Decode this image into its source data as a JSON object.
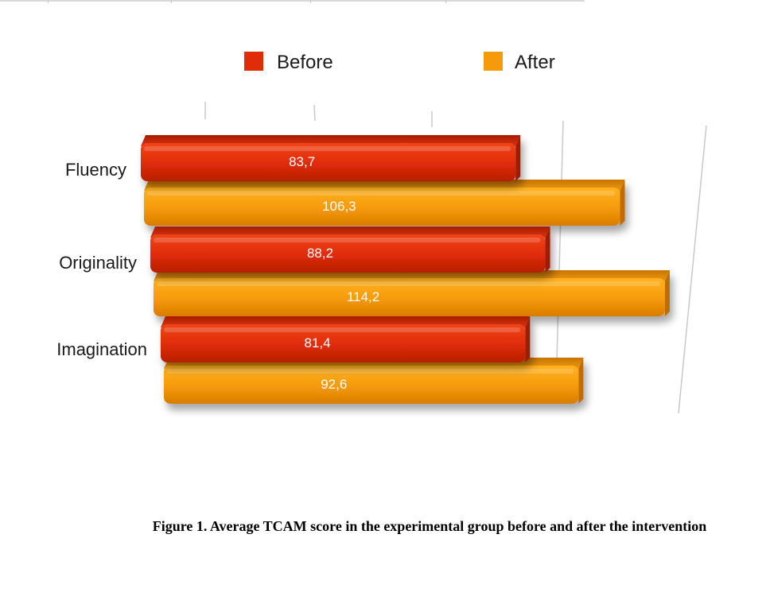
{
  "chart_data": {
    "type": "bar",
    "orientation": "horizontal",
    "categories": [
      "Fluency",
      "Originality",
      "Imagination"
    ],
    "series": [
      {
        "name": "Before",
        "color": "#e02c08",
        "values": [
          83.7,
          88.2,
          81.4
        ],
        "labels": [
          "83,7",
          "88,2",
          "81,4"
        ]
      },
      {
        "name": "After",
        "color": "#f59a0a",
        "values": [
          106.3,
          114.2,
          92.6
        ],
        "labels": [
          "106,3",
          "114,2",
          "92,6"
        ]
      }
    ],
    "legend": "top",
    "grid": true,
    "style": "3d"
  },
  "caption": "Figure 1. Average TCAM score in the experimental group before and after the intervention"
}
